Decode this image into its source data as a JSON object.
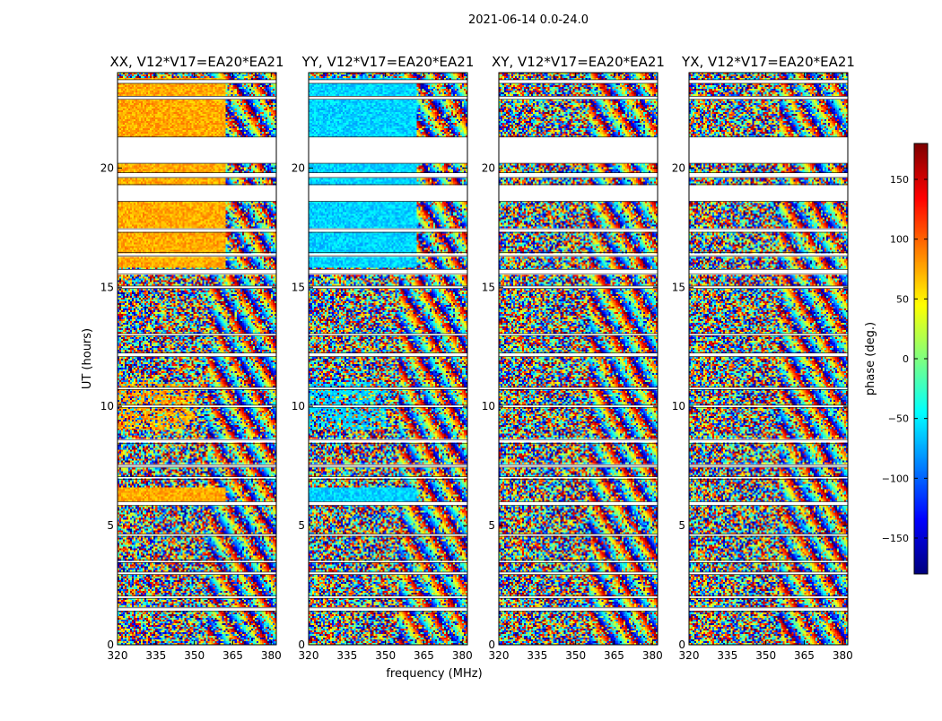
{
  "chart_data": {
    "type": "heatmap",
    "title": "2021-06-14 0.0-24.0",
    "xlabel": "frequency (MHz)",
    "ylabel": "UT (hours)",
    "xlim": [
      320,
      382
    ],
    "ylim": [
      0,
      24
    ],
    "x_ticks": [
      "320",
      "335",
      "350",
      "365",
      "380"
    ],
    "x_tick_values": [
      320,
      335,
      350,
      365,
      380
    ],
    "y_ticks": [
      "0",
      "5",
      "10",
      "15",
      "20"
    ],
    "y_tick_values": [
      0,
      5,
      10,
      15,
      20
    ],
    "colorbar": {
      "label": "phase (deg.)",
      "range": [
        -180,
        180
      ],
      "ticks": [
        "150",
        "100",
        "50",
        "0",
        "−50",
        "−100",
        "−150"
      ],
      "tick_values": [
        150,
        100,
        50,
        0,
        -50,
        -100,
        -150
      ],
      "colormap": "jet"
    },
    "panels": [
      {
        "title": "XX, V12*V17=EA20*EA21",
        "pol": "XX",
        "base_phase": 75
      },
      {
        "title": "YY, V12*V17=EA20*EA21",
        "pol": "YY",
        "base_phase": -60
      },
      {
        "title": "XY, V12*V17=EA20*EA21",
        "pol": "XY",
        "base_phase": -150
      },
      {
        "title": "YX, V12*V17=EA20*EA21",
        "pol": "YX",
        "base_phase": 0
      }
    ],
    "flagged_hours": [
      [
        1.4,
        1.55
      ],
      [
        1.95,
        2.05
      ],
      [
        2.95,
        3.05
      ],
      [
        3.45,
        3.55
      ],
      [
        4.55,
        4.65
      ],
      [
        5.85,
        6.0
      ],
      [
        6.95,
        7.05
      ],
      [
        7.45,
        7.55
      ],
      [
        8.45,
        8.6
      ],
      [
        9.95,
        10.05
      ],
      [
        10.7,
        10.8
      ],
      [
        12.1,
        12.25
      ],
      [
        12.95,
        13.05
      ],
      [
        14.95,
        15.05
      ],
      [
        15.55,
        15.75
      ],
      [
        16.3,
        16.45
      ],
      [
        17.3,
        17.45
      ],
      [
        18.6,
        19.3
      ],
      [
        19.6,
        19.8
      ],
      [
        20.2,
        21.3
      ],
      [
        22.9,
        23.0
      ],
      [
        23.55,
        23.7
      ]
    ]
  },
  "colors": {
    "axis": "#000000",
    "flag": "#ffffff"
  }
}
